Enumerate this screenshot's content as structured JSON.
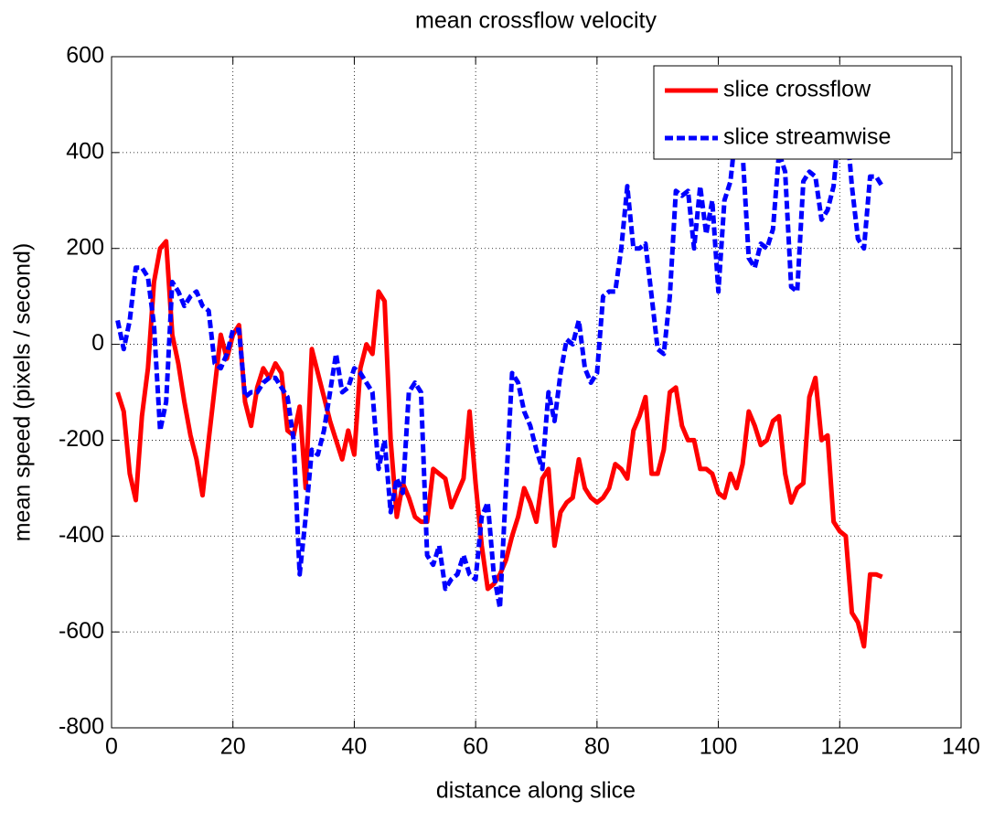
{
  "chart_data": {
    "type": "line",
    "title": "mean crossflow velocity",
    "xlabel": "distance along slice",
    "ylabel": "mean speed (pixels / second)",
    "x": [
      1,
      2,
      3,
      4,
      5,
      6,
      7,
      8,
      9,
      10,
      11,
      12,
      13,
      14,
      15,
      16,
      17,
      18,
      19,
      20,
      21,
      22,
      23,
      24,
      25,
      26,
      27,
      28,
      29,
      30,
      31,
      32,
      33,
      34,
      35,
      36,
      37,
      38,
      39,
      40,
      41,
      42,
      43,
      44,
      45,
      46,
      47,
      48,
      49,
      50,
      51,
      52,
      53,
      54,
      55,
      56,
      57,
      58,
      59,
      60,
      61,
      62,
      63,
      64,
      65,
      66,
      67,
      68,
      69,
      70,
      71,
      72,
      73,
      74,
      75,
      76,
      77,
      78,
      79,
      80,
      81,
      82,
      83,
      84,
      85,
      86,
      87,
      88,
      89,
      90,
      91,
      92,
      93,
      94,
      95,
      96,
      97,
      98,
      99,
      100,
      101,
      102,
      103,
      104,
      105,
      106,
      107,
      108,
      109,
      110,
      111,
      112,
      113,
      114,
      115,
      116,
      117,
      118,
      119,
      120,
      121,
      122,
      123,
      124,
      125,
      126,
      127
    ],
    "series": [
      {
        "name": "slice crossflow",
        "color": "#ff0000",
        "dash": false,
        "values": [
          -100,
          -140,
          -270,
          -325,
          -150,
          -50,
          130,
          200,
          215,
          20,
          -40,
          -120,
          -190,
          -240,
          -315,
          -200,
          -90,
          20,
          -30,
          20,
          40,
          -120,
          -170,
          -90,
          -50,
          -70,
          -40,
          -60,
          -180,
          -190,
          -130,
          -300,
          -10,
          -60,
          -110,
          -160,
          -200,
          -240,
          -180,
          -230,
          -50,
          0,
          -20,
          110,
          90,
          -200,
          -360,
          -290,
          -320,
          -360,
          -370,
          -370,
          -260,
          -270,
          -280,
          -340,
          -310,
          -280,
          -140,
          -290,
          -420,
          -510,
          -500,
          -480,
          -450,
          -400,
          -360,
          -300,
          -330,
          -370,
          -280,
          -260,
          -420,
          -350,
          -330,
          -320,
          -240,
          -300,
          -320,
          -330,
          -320,
          -300,
          -250,
          -260,
          -280,
          -180,
          -150,
          -110,
          -270,
          -270,
          -220,
          -100,
          -90,
          -170,
          -200,
          -200,
          -260,
          -260,
          -270,
          -310,
          -320,
          -270,
          -300,
          -250,
          -140,
          -170,
          -210,
          -200,
          -160,
          -150,
          -270,
          -330,
          -300,
          -290,
          -110,
          -70,
          -200,
          -190,
          -370,
          -390,
          -400,
          -560,
          -580,
          -630,
          -480,
          -480,
          -485
        ]
      },
      {
        "name": "slice streamwise",
        "color": "#0000ff",
        "dash": true,
        "values": [
          50,
          -10,
          50,
          160,
          160,
          140,
          40,
          -180,
          -120,
          130,
          110,
          80,
          100,
          110,
          80,
          70,
          -40,
          -50,
          -20,
          30,
          30,
          -110,
          -100,
          -100,
          -80,
          -70,
          -70,
          -90,
          -110,
          -200,
          -480,
          -360,
          -220,
          -230,
          -180,
          -100,
          -20,
          -100,
          -90,
          -50,
          -60,
          -80,
          -100,
          -260,
          -200,
          -350,
          -280,
          -310,
          -100,
          -80,
          -100,
          -440,
          -460,
          -420,
          -510,
          -490,
          -480,
          -440,
          -480,
          -490,
          -360,
          -330,
          -480,
          -550,
          -300,
          -60,
          -80,
          -140,
          -170,
          -220,
          -260,
          -100,
          -160,
          -60,
          10,
          0,
          50,
          -50,
          -80,
          -60,
          100,
          110,
          110,
          200,
          330,
          200,
          200,
          210,
          100,
          -10,
          -20,
          100,
          320,
          310,
          320,
          200,
          330,
          230,
          300,
          110,
          300,
          340,
          460,
          400,
          180,
          160,
          210,
          200,
          240,
          400,
          360,
          120,
          110,
          340,
          360,
          350,
          260,
          280,
          330,
          470,
          480,
          330,
          220,
          200,
          350,
          350,
          330
        ]
      }
    ],
    "xlim": [
      0,
      140
    ],
    "xticks": [
      0,
      20,
      40,
      60,
      80,
      100,
      120,
      140
    ],
    "ylim": [
      -800,
      600
    ],
    "yticks": [
      -800,
      -600,
      -400,
      -200,
      0,
      200,
      400,
      600
    ],
    "grid": true,
    "legend": "northeast"
  }
}
